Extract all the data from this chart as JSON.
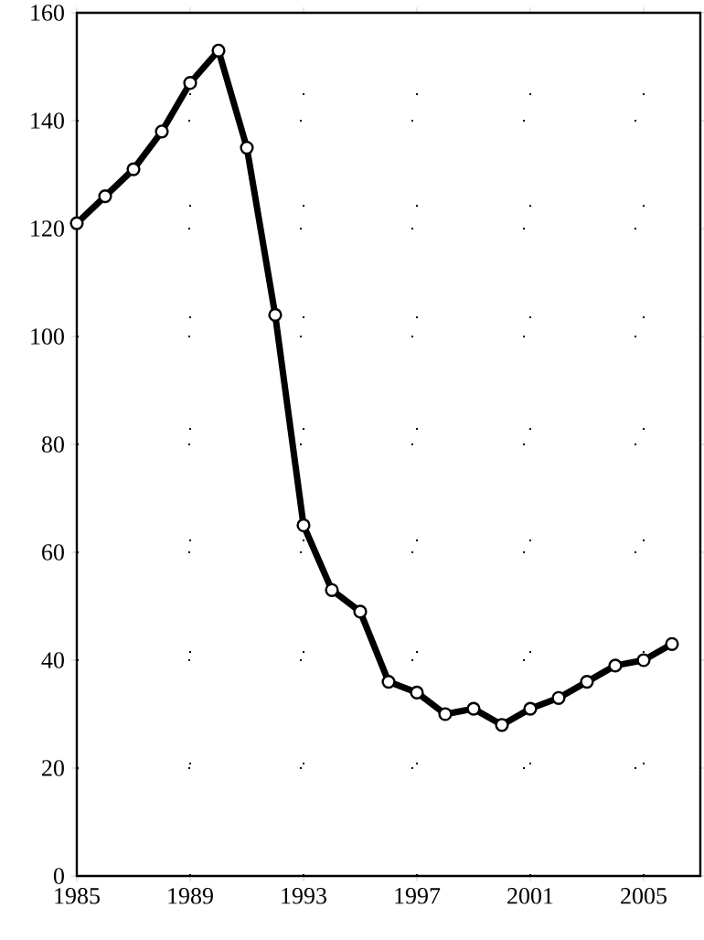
{
  "chart_data": {
    "type": "line",
    "x": [
      1985,
      1986,
      1987,
      1988,
      1989,
      1990,
      1991,
      1992,
      1993,
      1994,
      1995,
      1996,
      1997,
      1998,
      1999,
      2000,
      2001,
      2002,
      2003,
      2004,
      2005,
      2006
    ],
    "values": [
      121,
      126,
      131,
      138,
      147,
      153,
      135,
      104,
      65,
      53,
      49,
      36,
      34,
      30,
      31,
      28,
      31,
      33,
      36,
      39,
      40,
      43
    ],
    "color": "#000000",
    "xlim": [
      1985,
      2007
    ],
    "ylim": [
      0,
      160
    ],
    "xticks": [
      1985,
      1989,
      1993,
      1997,
      2001,
      2005
    ],
    "yticks": [
      0,
      20,
      40,
      60,
      80,
      100,
      120,
      140,
      160
    ],
    "grid": true,
    "marker": "circle",
    "line_style": "solid"
  }
}
